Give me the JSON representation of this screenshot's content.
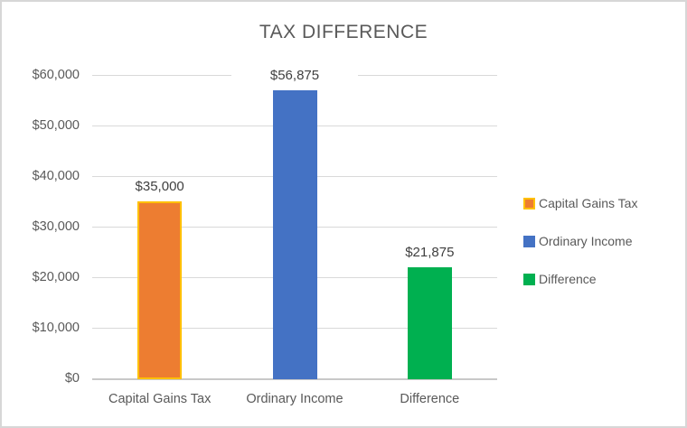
{
  "chart_data": {
    "type": "bar",
    "title": "TAX DIFFERENCE",
    "categories": [
      "Capital Gains Tax",
      "Ordinary Income",
      "Difference"
    ],
    "values": [
      35000,
      56875,
      21875
    ],
    "data_labels": [
      "$35,000",
      "$56,875",
      "$21,875"
    ],
    "xlabel": "",
    "ylabel": "",
    "ylim": [
      0,
      60000
    ],
    "ytick_interval": 10000,
    "ytick_labels": [
      "$0",
      "$10,000",
      "$20,000",
      "$30,000",
      "$40,000",
      "$50,000",
      "$60,000"
    ],
    "grid": true,
    "series_colors": [
      {
        "fill": "#ED7D31",
        "border": "#FFC000"
      },
      {
        "fill": "#4472C4",
        "border": "none"
      },
      {
        "fill": "#00B050",
        "border": "none"
      }
    ],
    "legend": {
      "position": "right",
      "entries": [
        {
          "label": "Capital Gains Tax",
          "color": "#ED7D31",
          "border": "#FFC000"
        },
        {
          "label": "Ordinary Income",
          "color": "#4472C4",
          "border": "none"
        },
        {
          "label": "Difference",
          "color": "#00B050",
          "border": "none"
        }
      ]
    }
  },
  "colors": {
    "title_text": "#595959",
    "axis_text": "#595959",
    "data_label_text": "#404040",
    "gridline": "#D9D9D9",
    "axis_line": "#C8C8C8",
    "chart_border": "#D7D7D7",
    "background": "#FFFFFF"
  }
}
